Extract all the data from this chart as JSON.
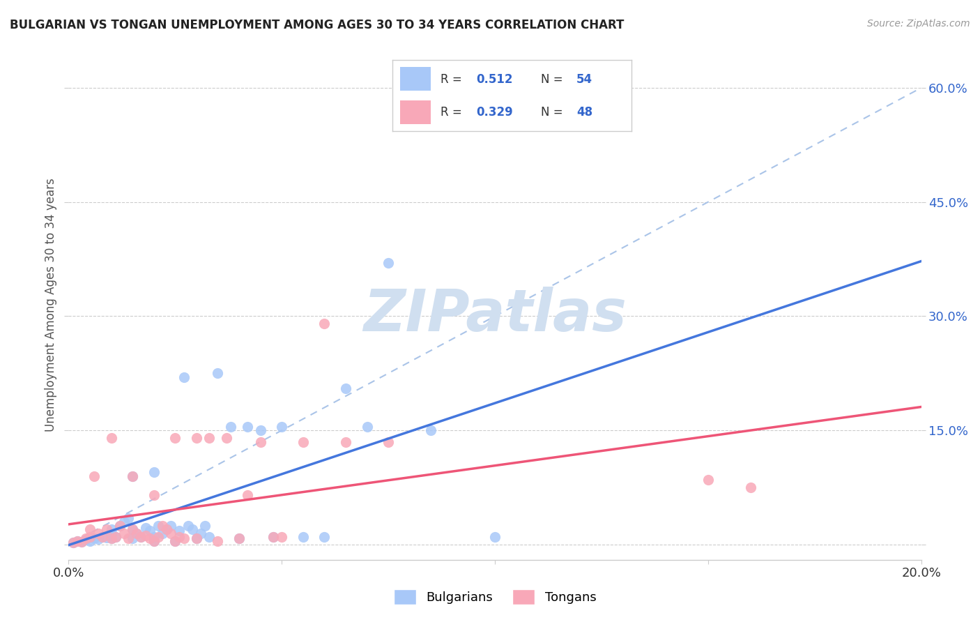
{
  "title": "BULGARIAN VS TONGAN UNEMPLOYMENT AMONG AGES 30 TO 34 YEARS CORRELATION CHART",
  "source": "Source: ZipAtlas.com",
  "ylabel": "Unemployment Among Ages 30 to 34 years",
  "xlim": [
    0.0,
    0.2
  ],
  "ylim": [
    -0.02,
    0.65
  ],
  "yticks": [
    0.0,
    0.15,
    0.3,
    0.45,
    0.6
  ],
  "ytick_labels": [
    "",
    "15.0%",
    "30.0%",
    "45.0%",
    "60.0%"
  ],
  "xticks": [
    0.0,
    0.05,
    0.1,
    0.15,
    0.2
  ],
  "bulgarian_color": "#a8c8f8",
  "tongan_color": "#f8a8b8",
  "bulgarian_line_color": "#4477dd",
  "tongan_line_color": "#ee5577",
  "diagonal_color": "#aac4e8",
  "R_bulgarian": 0.512,
  "N_bulgarian": 54,
  "R_tongan": 0.329,
  "N_tongan": 48,
  "legend_R_color": "#3366cc",
  "watermark_color": "#d0dff0",
  "bulgarian_x": [
    0.001,
    0.002,
    0.003,
    0.004,
    0.005,
    0.006,
    0.007,
    0.008,
    0.009,
    0.01,
    0.01,
    0.01,
    0.01,
    0.011,
    0.012,
    0.013,
    0.014,
    0.015,
    0.015,
    0.015,
    0.016,
    0.017,
    0.018,
    0.019,
    0.02,
    0.02,
    0.02,
    0.021,
    0.022,
    0.023,
    0.024,
    0.025,
    0.026,
    0.027,
    0.028,
    0.029,
    0.03,
    0.031,
    0.032,
    0.033,
    0.035,
    0.038,
    0.04,
    0.042,
    0.045,
    0.048,
    0.05,
    0.055,
    0.06,
    0.065,
    0.07,
    0.075,
    0.085,
    0.1
  ],
  "bulgarian_y": [
    0.003,
    0.005,
    0.004,
    0.006,
    0.005,
    0.008,
    0.007,
    0.01,
    0.009,
    0.008,
    0.012,
    0.015,
    0.02,
    0.01,
    0.025,
    0.03,
    0.035,
    0.008,
    0.02,
    0.09,
    0.015,
    0.01,
    0.022,
    0.018,
    0.005,
    0.01,
    0.095,
    0.025,
    0.015,
    0.02,
    0.025,
    0.005,
    0.018,
    0.22,
    0.025,
    0.02,
    0.008,
    0.015,
    0.025,
    0.01,
    0.225,
    0.155,
    0.008,
    0.155,
    0.15,
    0.01,
    0.155,
    0.01,
    0.01,
    0.205,
    0.155,
    0.37,
    0.15,
    0.01
  ],
  "tongan_x": [
    0.001,
    0.002,
    0.003,
    0.004,
    0.005,
    0.005,
    0.006,
    0.007,
    0.008,
    0.009,
    0.01,
    0.01,
    0.011,
    0.012,
    0.013,
    0.014,
    0.015,
    0.015,
    0.016,
    0.017,
    0.018,
    0.019,
    0.02,
    0.02,
    0.021,
    0.022,
    0.023,
    0.024,
    0.025,
    0.025,
    0.026,
    0.027,
    0.03,
    0.03,
    0.033,
    0.035,
    0.037,
    0.04,
    0.042,
    0.045,
    0.048,
    0.05,
    0.055,
    0.06,
    0.065,
    0.075,
    0.15,
    0.16
  ],
  "tongan_y": [
    0.003,
    0.005,
    0.004,
    0.008,
    0.01,
    0.02,
    0.09,
    0.015,
    0.01,
    0.02,
    0.008,
    0.14,
    0.01,
    0.025,
    0.015,
    0.008,
    0.02,
    0.09,
    0.015,
    0.01,
    0.012,
    0.008,
    0.005,
    0.065,
    0.01,
    0.025,
    0.02,
    0.015,
    0.005,
    0.14,
    0.01,
    0.008,
    0.008,
    0.14,
    0.14,
    0.005,
    0.14,
    0.008,
    0.065,
    0.135,
    0.01,
    0.01,
    0.135,
    0.29,
    0.135,
    0.135,
    0.085,
    0.075
  ],
  "background_color": "#ffffff"
}
